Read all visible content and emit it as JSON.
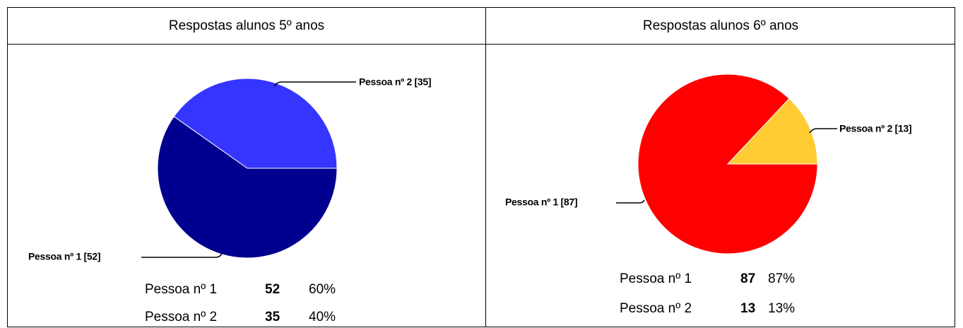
{
  "table": {
    "headers": [
      "Respostas alunos 5º anos",
      "Respostas alunos 6º anos"
    ]
  },
  "chart_data": [
    {
      "type": "pie",
      "categories": [
        "Pessoa nº 1",
        "Pessoa nº 2"
      ],
      "values": [
        52,
        35
      ],
      "colors": [
        "#000090",
        "#3535ff"
      ],
      "slice_labels": [
        "Pessoa nº 1 [52]",
        "Pessoa nº 2 [35]"
      ],
      "percentage_labels": [
        "60%",
        "40%"
      ]
    },
    {
      "type": "pie",
      "categories": [
        "Pessoa nº 1",
        "Pessoa nº 2"
      ],
      "values": [
        87,
        13
      ],
      "colors": [
        "#ff0000",
        "#ffcc33"
      ],
      "slice_labels": [
        "Pessoa nº 1 [87]",
        "Pessoa nº 2 [13]"
      ],
      "percentage_labels": [
        "87%",
        "13%"
      ]
    }
  ]
}
